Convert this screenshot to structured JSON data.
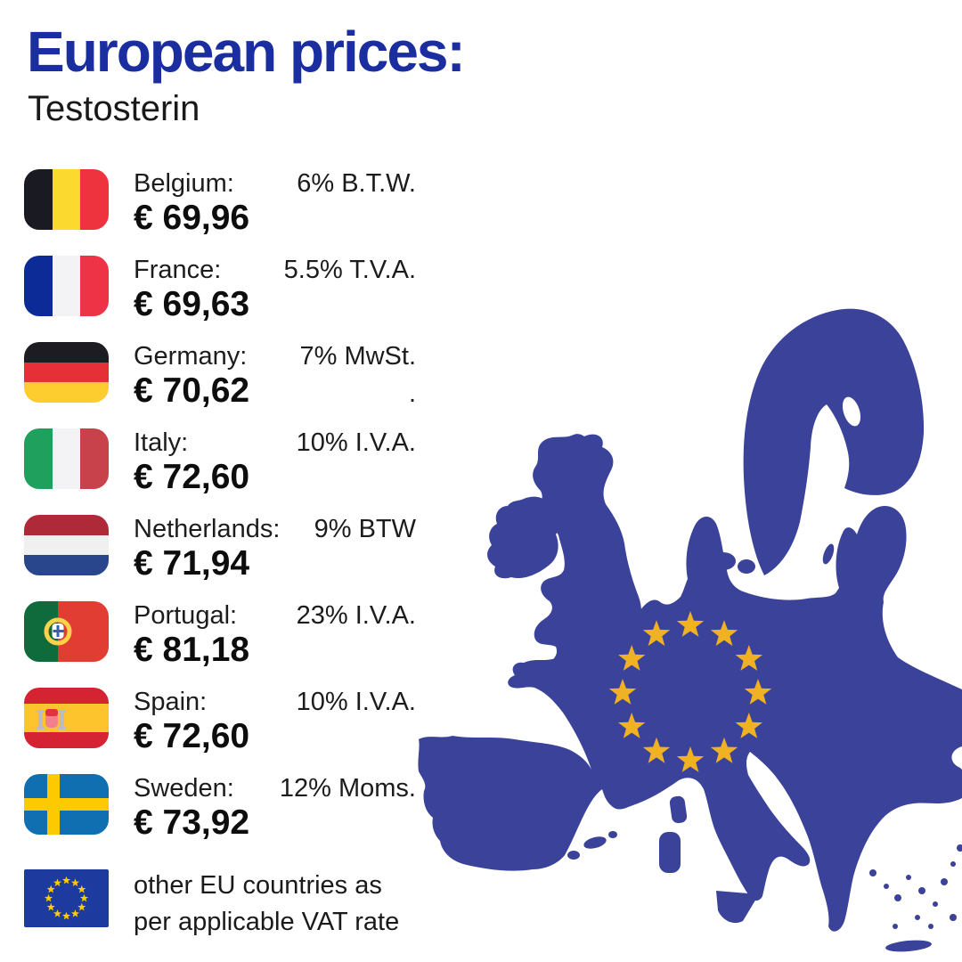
{
  "header": {
    "title": "European prices:",
    "subtitle": "Testosterin",
    "title_color": "#1b2ea0"
  },
  "price_list": [
    {
      "country": "Belgium",
      "label": "Belgium:",
      "price": "€ 69,96",
      "vat": "6% B.T.W.",
      "flag": "belgium"
    },
    {
      "country": "France",
      "label": "France:",
      "price": "€ 69,63",
      "vat": "5.5% T.V.A.",
      "flag": "france"
    },
    {
      "country": "Germany",
      "label": "Germany:",
      "price": "€ 70,62",
      "vat": "7% MwSt.",
      "vat_line2": ".",
      "flag": "germany"
    },
    {
      "country": "Italy",
      "label": "Italy:",
      "price": "€ 72,60",
      "vat": "10% I.V.A.",
      "flag": "italy"
    },
    {
      "country": "Netherlands",
      "label": "Netherlands:",
      "price": "€ 71,94",
      "vat": "9% BTW",
      "flag": "netherlands"
    },
    {
      "country": "Portugal",
      "label": "Portugal:",
      "price": "€ 81,18",
      "vat": "23% I.V.A.",
      "flag": "portugal"
    },
    {
      "country": "Spain",
      "label": "Spain:",
      "price": "€ 72,60",
      "vat": "10% I.V.A.",
      "flag": "spain"
    },
    {
      "country": "Sweden",
      "label": "Sweden:",
      "price": "€ 73,92",
      "vat": "12% Moms.",
      "flag": "sweden"
    }
  ],
  "footer_note": {
    "line1": "other EU countries as",
    "line2": "per applicable VAT rate",
    "flag": "eu"
  },
  "flags": {
    "belgium": {
      "type": "v",
      "colors": [
        "#1a1a22",
        "#fcd92e",
        "#ee333f"
      ]
    },
    "france": {
      "type": "v",
      "colors": [
        "#0d2b96",
        "#f3f3f5",
        "#ef3347"
      ]
    },
    "germany": {
      "type": "h",
      "colors": [
        "#1c1c22",
        "#e43036",
        "#fdcc2f"
      ]
    },
    "italy": {
      "type": "v",
      "colors": [
        "#1fa05c",
        "#f3f3f5",
        "#c8424c"
      ]
    },
    "netherlands": {
      "type": "h",
      "colors": [
        "#ae2a38",
        "#f0f0f0",
        "#29468c"
      ]
    },
    "portugal": {
      "type": "portugal",
      "green": "#0f6b3c",
      "red": "#e23d33",
      "ring": "#fed24b",
      "shield": "#ffffff",
      "cross": "#3a5eb5"
    },
    "spain": {
      "type": "spain",
      "red": "#d52333",
      "yellow": "#fdc42d",
      "pillar": "#b9bcc6",
      "shield": "#f2808d",
      "shield_top": "#e0333c"
    },
    "sweden": {
      "type": "nordic",
      "bg": "#0f6fb0",
      "cross": "#fdc900"
    },
    "eu": {
      "type": "eu",
      "bg": "#1d3b9e",
      "star": "#ffcc00"
    }
  },
  "map": {
    "fill": "#3b4299",
    "star_color": "#f0b122",
    "star_count": 12
  }
}
